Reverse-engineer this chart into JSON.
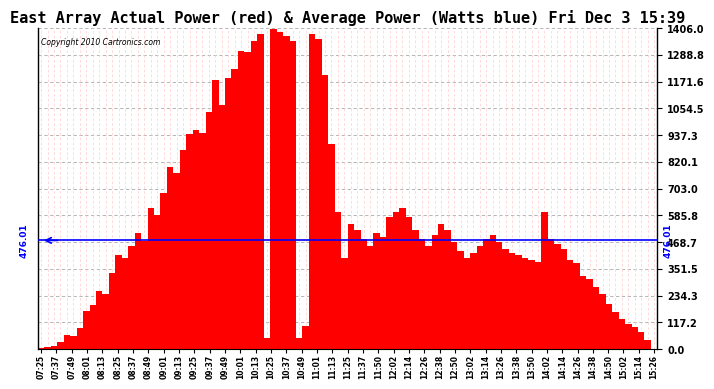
{
  "title": "East Array Actual Power (red) & Average Power (Watts blue) Fri Dec 3 15:39",
  "copyright": "Copyright 2010 Cartronics.com",
  "avg_power": 476.01,
  "ymax": 1406.0,
  "ymin": 0.0,
  "yticks": [
    0.0,
    117.2,
    234.3,
    351.5,
    468.7,
    585.8,
    703.0,
    820.1,
    937.3,
    1054.5,
    1171.6,
    1288.8,
    1406.0
  ],
  "bar_color": "#ff0000",
  "line_color": "#0000ff",
  "background_color": "#ffffff",
  "grid_color_h": "#aaaaaa",
  "grid_color_v": "#ffcccc",
  "title_fontsize": 11,
  "x_times": [
    "07:25",
    "07:37",
    "07:49",
    "08:01",
    "08:13",
    "08:25",
    "08:37",
    "08:49",
    "09:01",
    "09:13",
    "09:25",
    "09:37",
    "09:49",
    "10:01",
    "10:13",
    "10:25",
    "10:37",
    "10:49",
    "11:01",
    "11:13",
    "11:25",
    "11:37",
    "11:50",
    "12:02",
    "12:14",
    "12:26",
    "12:38",
    "12:50",
    "13:02",
    "13:14",
    "13:26",
    "13:38",
    "13:50",
    "14:02",
    "14:14",
    "14:26",
    "14:38",
    "14:50",
    "15:02",
    "15:14",
    "15:26"
  ]
}
